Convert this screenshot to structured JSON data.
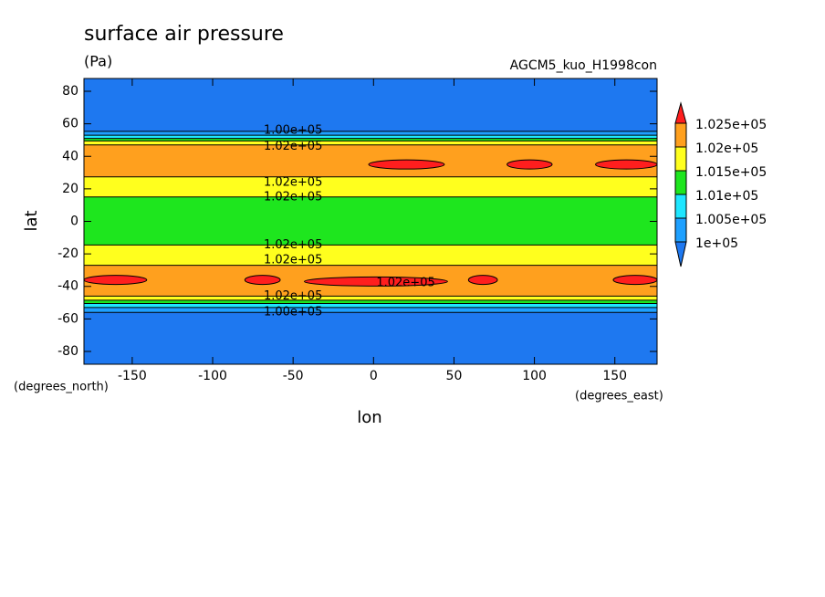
{
  "chart_data": {
    "type": "contour",
    "title": "surface air pressure",
    "units": "(Pa)",
    "model": "AGCM5_kuo_H1998con",
    "xlabel": "lon",
    "ylabel": "lat",
    "x_unit": "(degrees_east)",
    "y_unit": "(degrees_north)",
    "xlim": [
      -180,
      176.25
    ],
    "ylim": [
      -87.86,
      87.86
    ],
    "xticks": [
      -150,
      -100,
      -50,
      0,
      50,
      100,
      150
    ],
    "yticks": [
      -80,
      -60,
      -40,
      -20,
      0,
      20,
      40,
      60,
      80
    ],
    "lat_bins": [
      87.86,
      55.4,
      53,
      51,
      49.5,
      47,
      27.4,
      15,
      -14.5,
      -27,
      -46,
      -48.5,
      -50.5,
      -53,
      -56,
      -87.86
    ],
    "values": [
      99000,
      100250,
      100750,
      101250,
      101750,
      102250,
      101750,
      101250,
      101750,
      102250,
      101750,
      101250,
      100750,
      100250,
      99000
    ],
    "highs": [
      {
        "lon": [
          -3,
          44
        ],
        "lat": 35,
        "value": 102600
      },
      {
        "lon": [
          83,
          111
        ],
        "lat": 35,
        "value": 102600
      },
      {
        "lon": [
          138,
          176.25
        ],
        "lat": 35,
        "value": 102600
      },
      {
        "lon": [
          -180,
          -141
        ],
        "lat": -36,
        "value": 102600
      },
      {
        "lon": [
          -80,
          -58
        ],
        "lat": -36,
        "value": 102600
      },
      {
        "lon": [
          -43,
          46
        ],
        "lat": -37,
        "value": 102600
      },
      {
        "lon": [
          59,
          77
        ],
        "lat": -36,
        "value": 102600
      },
      {
        "lon": [
          149,
          176.25
        ],
        "lat": -36,
        "value": 102600
      }
    ],
    "contour_labels": [
      "1.00e+05",
      "1.02e+05",
      "1.02e+05",
      "1.02e+05",
      "1.02e+05",
      "1.02e+05",
      "1.02e+05",
      "1.02e+05",
      "1.00e+05"
    ],
    "colorbar": {
      "levels": [
        {
          "value": 100000,
          "label": "1e+05"
        },
        {
          "value": 100500,
          "label": "1.005e+05"
        },
        {
          "value": 101000,
          "label": "1.01e+05"
        },
        {
          "value": 101500,
          "label": "1.015e+05"
        },
        {
          "value": 102000,
          "label": "1.02e+05"
        },
        {
          "value": 102500,
          "label": "1.025e+05"
        }
      ],
      "colors": [
        "#1e78f0",
        "#1ea0ff",
        "#1ee6ff",
        "#1ee61e",
        "#ffff1e",
        "#ffa01e",
        "#ff1e1e"
      ]
    }
  }
}
